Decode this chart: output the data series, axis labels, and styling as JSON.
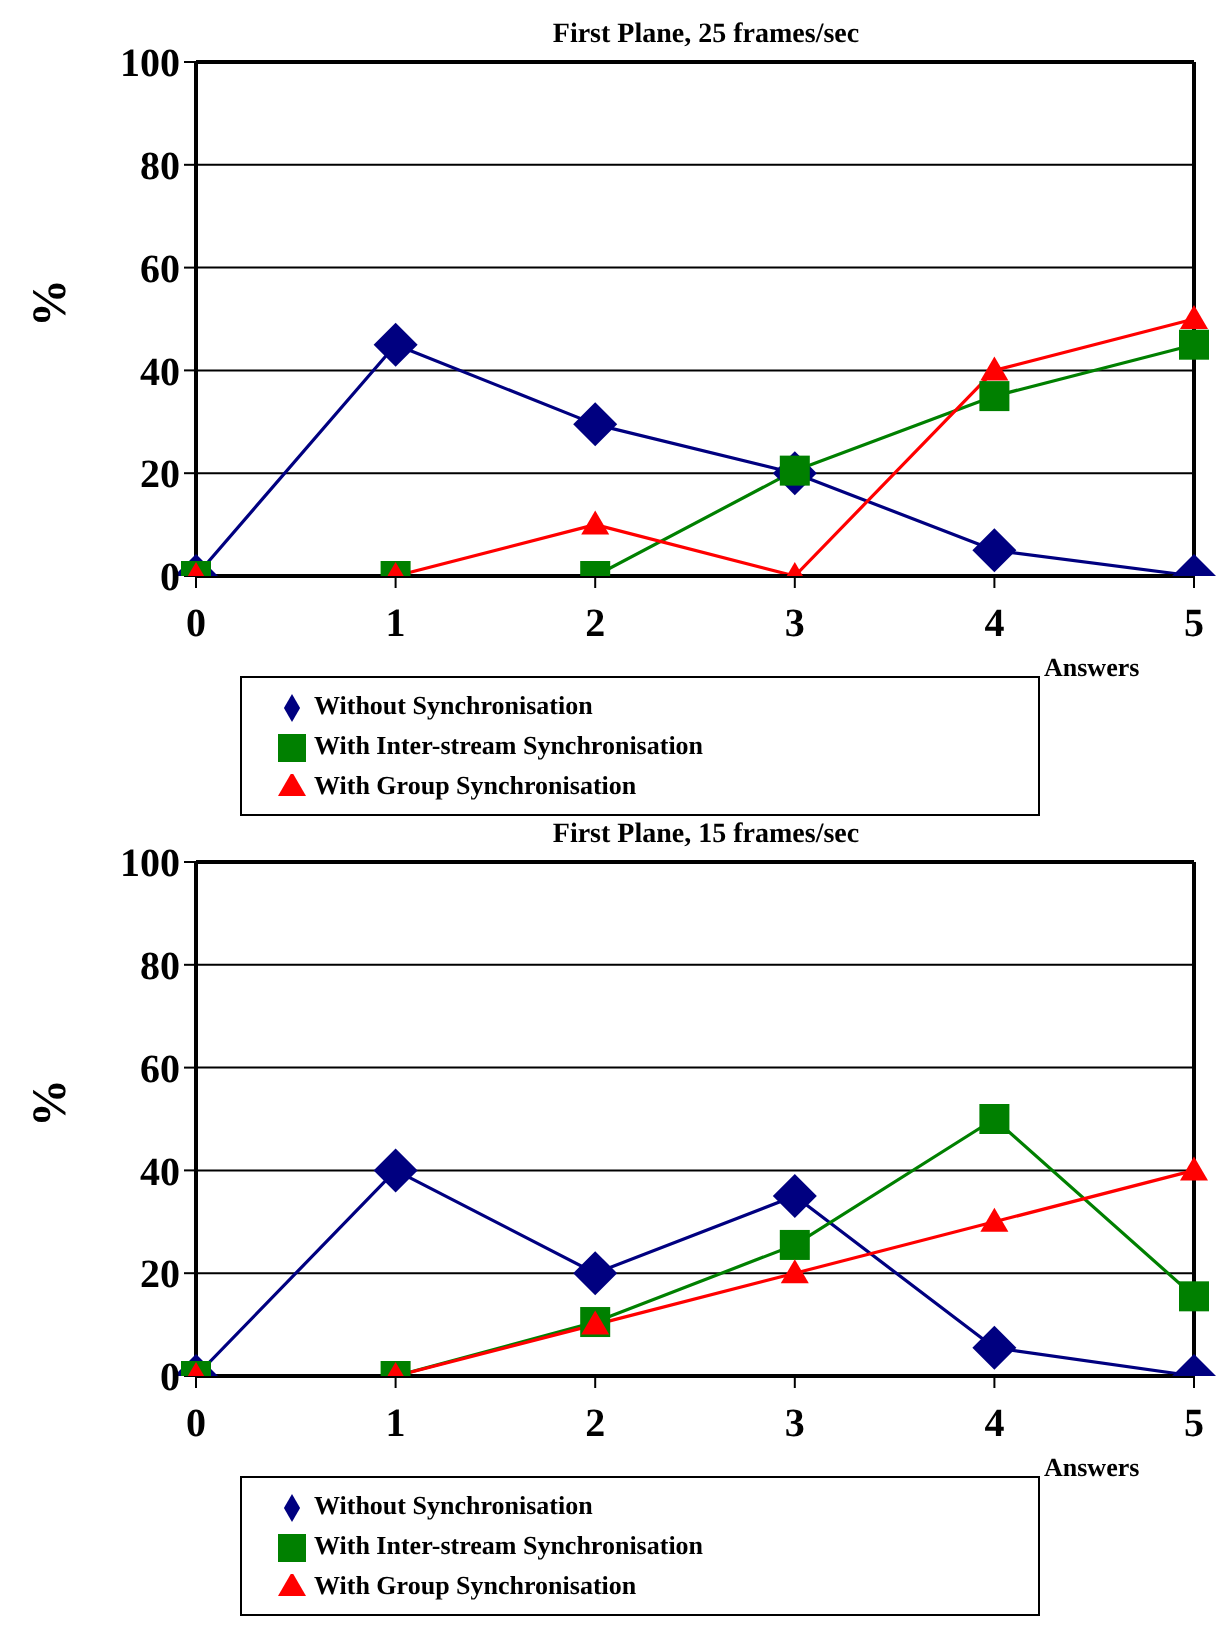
{
  "chart_data": [
    {
      "type": "line",
      "title": "First Plane, 25 frames/sec",
      "xlabel": "Answers",
      "ylabel": "%",
      "categories": [
        "0",
        "1",
        "2",
        "3",
        "4",
        "5"
      ],
      "ylim": [
        0,
        100
      ],
      "yticks": [
        0,
        20,
        40,
        60,
        80,
        100
      ],
      "grid": "y",
      "legend": "bottom",
      "series": [
        {
          "name": "Without Synchronisation",
          "color": "#000080",
          "marker": "diamond",
          "values": [
            0,
            45,
            29.5,
            20,
            5,
            0
          ]
        },
        {
          "name": "With Inter-stream Synchronisation",
          "color": "#008000",
          "marker": "square",
          "values": [
            0,
            0,
            0,
            20.5,
            35,
            45
          ]
        },
        {
          "name": "With Group Synchronisation",
          "color": "#ff0000",
          "marker": "triangle",
          "values": [
            0,
            0,
            10,
            0,
            40,
            50
          ]
        }
      ]
    },
    {
      "type": "line",
      "title": "First Plane, 15 frames/sec",
      "xlabel": "Answers",
      "ylabel": "%",
      "categories": [
        "0",
        "1",
        "2",
        "3",
        "4",
        "5"
      ],
      "ylim": [
        0,
        100
      ],
      "yticks": [
        0,
        20,
        40,
        60,
        80,
        100
      ],
      "grid": "y",
      "legend": "bottom",
      "series": [
        {
          "name": "Without Synchronisation",
          "color": "#000080",
          "marker": "diamond",
          "values": [
            0,
            40,
            20,
            35,
            5.5,
            0
          ]
        },
        {
          "name": "With Inter-stream Synchronisation",
          "color": "#008000",
          "marker": "square",
          "values": [
            0,
            0,
            10.5,
            25.5,
            50,
            15.5
          ]
        },
        {
          "name": "With Group Synchronisation",
          "color": "#ff0000",
          "marker": "triangle",
          "values": [
            0,
            0,
            10,
            20,
            30,
            40
          ]
        }
      ]
    }
  ]
}
